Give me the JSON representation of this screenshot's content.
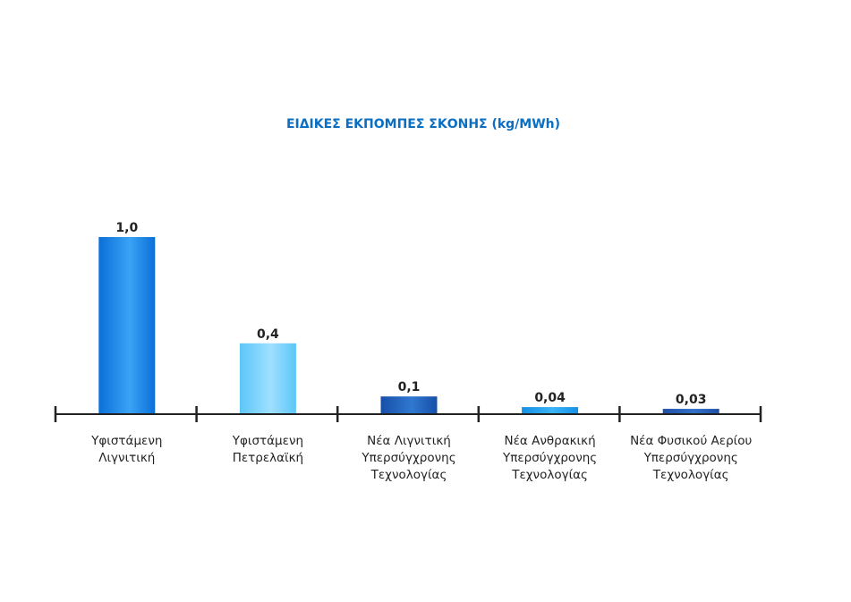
{
  "chart_data": {
    "type": "bar",
    "title": "ΕΙΔΙΚΕΣ ΕΚΠΟΜΠΕΣ ΣΚΟΝΗΣ (kg/MWh)",
    "xlabel": "",
    "ylabel": "",
    "ylim": [
      0,
      1.0
    ],
    "grid": false,
    "categories": [
      [
        "Υφιστάμενη",
        "Λιγνιτική"
      ],
      [
        "Υφιστάμενη",
        "Πετρελαϊκή"
      ],
      [
        "Νέα Λιγνιτική",
        "Υπερσύγχρονης",
        "Τεχνολογίας"
      ],
      [
        "Νέα Ανθρακική",
        "Υπερσύγχρονης",
        "Τεχνολογίας"
      ],
      [
        "Νέα Φυσικού Αερίου",
        "Υπερσύγχρονης",
        "Τεχνολογίας"
      ]
    ],
    "values": [
      1.0,
      0.4,
      0.1,
      0.04,
      0.03
    ],
    "value_labels": [
      "1,0",
      "0,4",
      "0,1",
      "0,04",
      "0,03"
    ],
    "colors": [
      [
        "#0b6fd8",
        "#3aa3f5"
      ],
      [
        "#5cc6f8",
        "#9fe0ff"
      ],
      [
        "#174fa8",
        "#2f78d0"
      ],
      [
        "#1490e6",
        "#3ab4f5"
      ],
      [
        "#1f4ea6",
        "#3270c8"
      ]
    ]
  }
}
